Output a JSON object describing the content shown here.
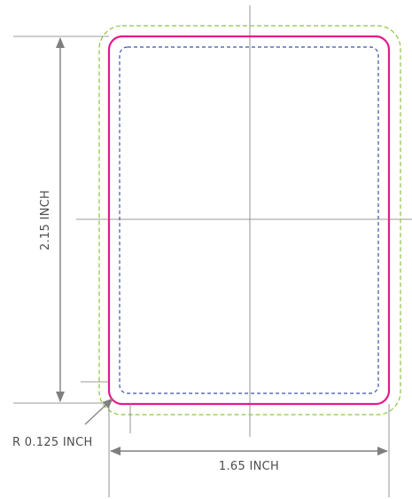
{
  "labels": {
    "height": "2.15 INCH",
    "width": "1.65 INCH",
    "radius": "R 0.125 INCH"
  },
  "colors": {
    "trim_line": "#e6198a",
    "bleed_line": "#8cc63f",
    "safe_line": "#3b55a4",
    "guide_line": "#7a7a7a",
    "text": "#4d4d4d",
    "arrow": "#7f7f7f"
  }
}
